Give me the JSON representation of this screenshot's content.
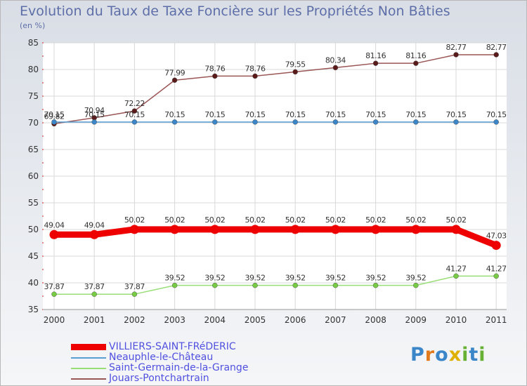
{
  "chart_data": {
    "type": "line",
    "title": "Evolution du Taux de Taxe Foncière sur les Propriétés Non Bâties",
    "unit_label": "(en %)",
    "xlabel": "",
    "ylabel": "",
    "categories": [
      "2000",
      "2001",
      "2002",
      "2003",
      "2004",
      "2005",
      "2006",
      "2007",
      "2008",
      "2009",
      "2010",
      "2011"
    ],
    "ylim": [
      35,
      85
    ],
    "yticks": [
      35,
      40,
      45,
      50,
      55,
      60,
      65,
      70,
      75,
      80,
      85
    ],
    "series": [
      {
        "name": "VILLIERS-SAINT-FRéDERIC",
        "color": "#ee0000",
        "thick": true,
        "values": [
          49.04,
          49.04,
          50.02,
          50.02,
          50.02,
          50.02,
          50.02,
          50.02,
          50.02,
          50.02,
          50.02,
          47.03
        ],
        "labels": [
          "49.04",
          "49.04",
          "50.02",
          "50.02",
          "50.02",
          "50.02",
          "50.02",
          "50.02",
          "50.02",
          "50.02",
          "50.02",
          "47.03"
        ]
      },
      {
        "name": "Neauphle-le-Château",
        "color": "#5a9fd4",
        "point_color": "#3a86c8",
        "thick": false,
        "values": [
          70.15,
          70.15,
          70.15,
          70.15,
          70.15,
          70.15,
          70.15,
          70.15,
          70.15,
          70.15,
          70.15,
          70.15
        ],
        "labels": [
          "70.15",
          "70.15",
          "70.15",
          "70.15",
          "70.15",
          "70.15",
          "70.15",
          "70.15",
          "70.15",
          "70.15",
          "70.15",
          "70.15"
        ]
      },
      {
        "name": "Saint-Germain-de-la-Grange",
        "color": "#99dd77",
        "point_color": "#77cc44",
        "thick": false,
        "values": [
          37.87,
          37.87,
          37.87,
          39.52,
          39.52,
          39.52,
          39.52,
          39.52,
          39.52,
          39.52,
          41.27,
          41.27
        ],
        "labels": [
          "37.87",
          "37.87",
          "37.87",
          "39.52",
          "39.52",
          "39.52",
          "39.52",
          "39.52",
          "39.52",
          "39.52",
          "41.27",
          "41.27"
        ]
      },
      {
        "name": "Jouars-Pontchartrain",
        "color": "#9a5555",
        "point_color": "#5a1a1a",
        "thick": false,
        "values": [
          69.82,
          70.94,
          72.22,
          77.99,
          78.76,
          78.76,
          79.55,
          80.34,
          81.16,
          81.16,
          82.77,
          82.77
        ],
        "labels": [
          "69.82",
          "70.94",
          "72.22",
          "77.99",
          "78.76",
          "78.76",
          "79.55",
          "80.34",
          "81.16",
          "81.16",
          "82.77",
          "82.77"
        ]
      }
    ]
  },
  "brand": {
    "letters": [
      "P",
      "r",
      "o",
      "x",
      "i",
      "t",
      "i"
    ],
    "colors": [
      "#3a86c8",
      "#e07a1c",
      "#3a86c8",
      "#e0b000",
      "#66b033",
      "#3a86c8",
      "#66b033"
    ]
  }
}
